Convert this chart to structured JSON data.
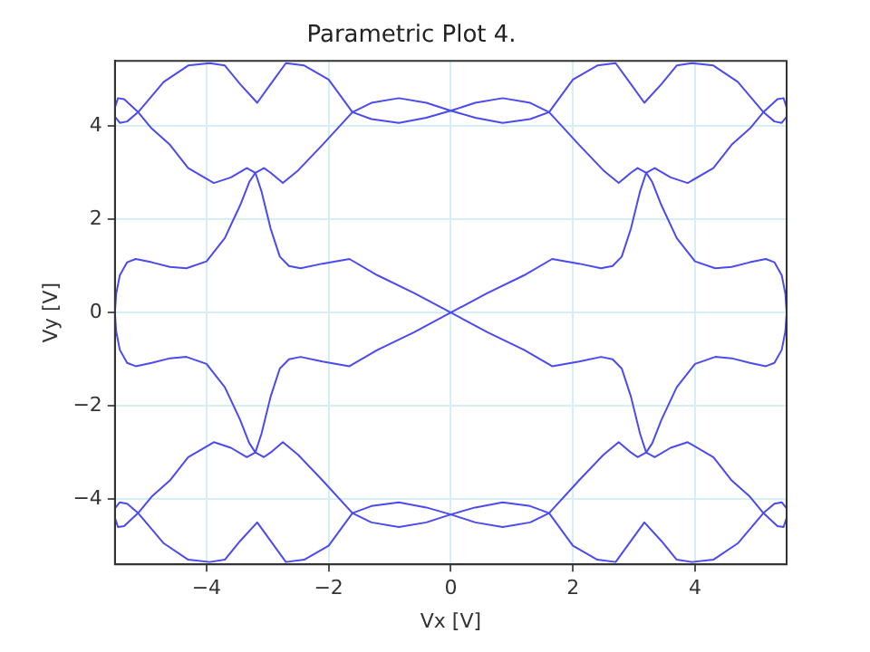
{
  "chart_data": {
    "type": "line",
    "title": "Parametric Plot 4.",
    "xlabel": "Vx [V]",
    "ylabel": "Vy [V]",
    "xlim": [
      -5.5,
      5.5
    ],
    "ylim": [
      -5.4,
      5.4
    ],
    "xticks": [
      -4,
      -2,
      0,
      2,
      4
    ],
    "yticks": [
      -4,
      -2,
      0,
      2,
      4
    ],
    "grid": true,
    "legend": false,
    "marker": "none",
    "line_style": "solid",
    "series": [
      {
        "color": "#4a4af0",
        "x": [
          -5.5,
          -5.48,
          -5.42,
          -5.3,
          -5.16,
          -4.9,
          -4.6,
          -4.33,
          -4.0,
          -3.7,
          -3.45,
          -3.3,
          -3.2,
          -3.1,
          -2.95,
          -2.8,
          -2.65,
          -2.46,
          -2.1,
          -1.66,
          -1.2,
          -0.6,
          0,
          0.6,
          1.2,
          1.66,
          2.1,
          2.46,
          2.65,
          2.8,
          2.95,
          3.1,
          3.2,
          3.3,
          3.45,
          3.7,
          4.0,
          4.33,
          4.6,
          4.9,
          5.16,
          5.3,
          5.42,
          5.48,
          5.5
        ],
        "values": [
          0,
          0.4,
          0.8,
          1.08,
          1.15,
          1.08,
          0.98,
          0.95,
          1.1,
          1.6,
          2.3,
          2.8,
          3.0,
          2.6,
          1.8,
          1.2,
          1.0,
          0.95,
          1.05,
          1.15,
          0.8,
          0.42,
          0,
          -0.42,
          -0.8,
          -1.15,
          -1.05,
          -0.95,
          -1.0,
          -1.2,
          -1.8,
          -2.6,
          -3.0,
          -2.8,
          -2.3,
          -1.6,
          -1.1,
          -0.95,
          -0.98,
          -1.08,
          -1.15,
          -1.08,
          -0.8,
          -0.4,
          0
        ]
      },
      {
        "color": "#4a4af0",
        "x": [
          -5.5,
          -5.48,
          -5.42,
          -5.3,
          -5.16,
          -4.9,
          -4.6,
          -4.33,
          -4.0,
          -3.7,
          -3.45,
          -3.3,
          -3.2,
          -3.1,
          -2.95,
          -2.8,
          -2.65,
          -2.46,
          -2.1,
          -1.66,
          -1.2,
          -0.6,
          0,
          0.6,
          1.2,
          1.66,
          2.1,
          2.46,
          2.65,
          2.8,
          2.95,
          3.1,
          3.2,
          3.3,
          3.45,
          3.7,
          4.0,
          4.33,
          4.6,
          4.9,
          5.16,
          5.3,
          5.42,
          5.48,
          5.5
        ],
        "values": [
          0,
          -0.4,
          -0.8,
          -1.08,
          -1.15,
          -1.08,
          -0.98,
          -0.95,
          -1.1,
          -1.6,
          -2.3,
          -2.8,
          -3.0,
          -2.6,
          -1.8,
          -1.2,
          -1.0,
          -0.95,
          -1.05,
          -1.15,
          -0.8,
          -0.42,
          0,
          0.42,
          0.8,
          1.15,
          1.05,
          0.95,
          1.0,
          1.2,
          1.8,
          2.6,
          3.0,
          2.8,
          2.3,
          1.6,
          1.1,
          0.95,
          0.98,
          1.08,
          1.15,
          1.08,
          0.8,
          0.4,
          0
        ]
      },
      {
        "color": "#4a4af0",
        "x": [
          -5.5,
          -5.45,
          -5.35,
          -5.12,
          -4.9,
          -4.6,
          -4.3,
          -3.88,
          -3.6,
          -3.34,
          -3.2,
          -3.06,
          -2.95,
          -2.75,
          -2.5,
          -2.1,
          -1.61,
          -1.3,
          -0.85,
          -0.4,
          0,
          0.4,
          0.85,
          1.3,
          1.61,
          2.0,
          2.4,
          2.7,
          2.95,
          3.17,
          3.45,
          3.7,
          3.95,
          4.3,
          4.7,
          5.12,
          5.3,
          5.42,
          5.5
        ],
        "values": [
          4.4,
          4.6,
          4.58,
          4.3,
          3.95,
          3.6,
          3.1,
          2.78,
          2.9,
          3.1,
          3.0,
          3.1,
          3.0,
          2.78,
          3.05,
          3.6,
          4.3,
          4.5,
          4.6,
          4.5,
          4.33,
          4.18,
          4.07,
          4.15,
          4.3,
          5.0,
          5.3,
          5.35,
          4.9,
          4.5,
          4.9,
          5.3,
          5.35,
          5.3,
          4.95,
          4.3,
          4.1,
          4.07,
          4.2
        ]
      },
      {
        "color": "#4a4af0",
        "x": [
          -5.5,
          -5.42,
          -5.3,
          -5.12,
          -4.7,
          -4.3,
          -3.95,
          -3.7,
          -3.45,
          -3.17,
          -2.95,
          -2.7,
          -2.4,
          -2.0,
          -1.61,
          -1.3,
          -0.85,
          -0.4,
          0,
          0.4,
          0.85,
          1.3,
          1.61,
          2.1,
          2.5,
          2.75,
          2.95,
          3.06,
          3.2,
          3.34,
          3.6,
          3.88,
          4.3,
          4.6,
          4.9,
          5.12,
          5.35,
          5.45,
          5.5
        ],
        "values": [
          4.2,
          4.07,
          4.1,
          4.3,
          4.95,
          5.3,
          5.35,
          5.3,
          4.9,
          4.5,
          4.9,
          5.35,
          5.3,
          5.0,
          4.3,
          4.15,
          4.07,
          4.18,
          4.33,
          4.5,
          4.6,
          4.5,
          4.3,
          3.6,
          3.05,
          2.78,
          3.0,
          3.1,
          3.0,
          3.1,
          2.9,
          2.78,
          3.1,
          3.6,
          3.95,
          4.3,
          4.58,
          4.6,
          4.4
        ]
      },
      {
        "color": "#4a4af0",
        "x": [
          -5.5,
          -5.45,
          -5.35,
          -5.12,
          -4.9,
          -4.6,
          -4.3,
          -3.88,
          -3.6,
          -3.34,
          -3.2,
          -3.06,
          -2.95,
          -2.75,
          -2.5,
          -2.1,
          -1.61,
          -1.3,
          -0.85,
          -0.4,
          0,
          0.4,
          0.85,
          1.3,
          1.61,
          2.0,
          2.4,
          2.7,
          2.95,
          3.17,
          3.45,
          3.7,
          3.95,
          4.3,
          4.7,
          5.12,
          5.3,
          5.42,
          5.5
        ],
        "values": [
          -4.4,
          -4.6,
          -4.58,
          -4.3,
          -3.95,
          -3.6,
          -3.1,
          -2.78,
          -2.9,
          -3.1,
          -3.0,
          -3.1,
          -3.0,
          -2.78,
          -3.05,
          -3.6,
          -4.3,
          -4.5,
          -4.6,
          -4.5,
          -4.33,
          -4.18,
          -4.07,
          -4.15,
          -4.3,
          -5.0,
          -5.3,
          -5.35,
          -4.9,
          -4.5,
          -4.9,
          -5.3,
          -5.35,
          -5.3,
          -4.95,
          -4.3,
          -4.1,
          -4.07,
          -4.2
        ]
      },
      {
        "color": "#4a4af0",
        "x": [
          -5.5,
          -5.42,
          -5.3,
          -5.12,
          -4.7,
          -4.3,
          -3.95,
          -3.7,
          -3.45,
          -3.17,
          -2.95,
          -2.7,
          -2.4,
          -2.0,
          -1.61,
          -1.3,
          -0.85,
          -0.4,
          0,
          0.4,
          0.85,
          1.3,
          1.61,
          2.1,
          2.5,
          2.75,
          2.95,
          3.06,
          3.2,
          3.34,
          3.6,
          3.88,
          4.3,
          4.6,
          4.9,
          5.12,
          5.35,
          5.45,
          5.5
        ],
        "values": [
          -4.2,
          -4.07,
          -4.1,
          -4.3,
          -4.95,
          -5.3,
          -5.35,
          -5.3,
          -4.9,
          -4.5,
          -4.9,
          -5.35,
          -5.3,
          -5.0,
          -4.3,
          -4.15,
          -4.07,
          -4.18,
          -4.33,
          -4.5,
          -4.6,
          -4.5,
          -4.3,
          -3.6,
          -3.05,
          -2.78,
          -3.0,
          -3.1,
          -3.0,
          -3.1,
          -2.9,
          -2.78,
          -3.1,
          -3.6,
          -3.95,
          -4.3,
          -4.58,
          -4.6,
          -4.4
        ]
      }
    ]
  }
}
